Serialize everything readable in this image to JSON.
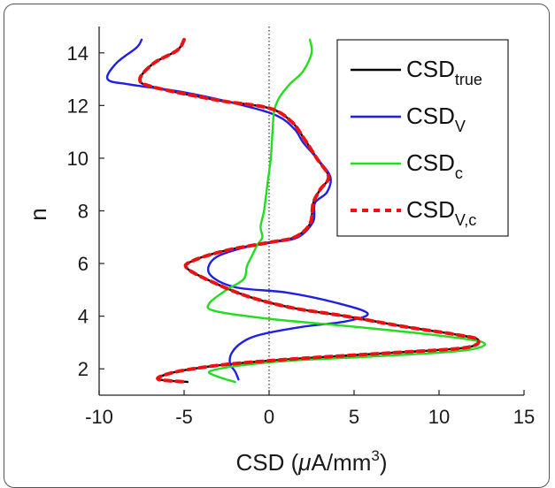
{
  "chart_data": {
    "type": "line",
    "xlabel_main": "CSD (",
    "xlabel_mu": "μ",
    "xlabel_unit": "A/mm",
    "xlabel_exp": "3",
    "xlabel_close": ")",
    "ylabel": "n",
    "xlim": [
      -10,
      15
    ],
    "ylim": [
      1,
      15
    ],
    "xticks": [
      -10,
      -5,
      0,
      5,
      10,
      15
    ],
    "yticks": [
      2,
      4,
      6,
      8,
      10,
      12,
      14
    ],
    "grid": false,
    "legend_position": "top-right",
    "zero_line": 0,
    "series": [
      {
        "name": "CSD",
        "sub": "true",
        "color": "#000000",
        "dash": "solid",
        "points": [
          [
            -5.0,
            14.5
          ],
          [
            -5.4,
            14.1
          ],
          [
            -6.8,
            13.6
          ],
          [
            -7.6,
            13.0
          ],
          [
            -6.8,
            12.7
          ],
          [
            -3.0,
            12.2
          ],
          [
            0.0,
            11.9
          ],
          [
            1.3,
            11.4
          ],
          [
            2.0,
            10.8
          ],
          [
            2.8,
            10.0
          ],
          [
            3.5,
            9.3
          ],
          [
            3.0,
            8.8
          ],
          [
            2.6,
            8.3
          ],
          [
            2.4,
            7.5
          ],
          [
            1.5,
            7.0
          ],
          [
            0.0,
            6.8
          ],
          [
            -2.5,
            6.5
          ],
          [
            -4.5,
            6.1
          ],
          [
            -4.8,
            5.8
          ],
          [
            -3.0,
            5.2
          ],
          [
            -1.0,
            4.7
          ],
          [
            1.5,
            4.3
          ],
          [
            4.5,
            4.0
          ],
          [
            8.0,
            3.6
          ],
          [
            11.0,
            3.3
          ],
          [
            12.3,
            3.1
          ],
          [
            11.5,
            2.8
          ],
          [
            7.0,
            2.6
          ],
          [
            2.0,
            2.4
          ],
          [
            -2.0,
            2.2
          ],
          [
            -4.5,
            2.0
          ],
          [
            -6.0,
            1.8
          ],
          [
            -6.5,
            1.6
          ],
          [
            -4.8,
            1.5
          ]
        ]
      },
      {
        "name": "CSD",
        "sub": "V",
        "color": "#1f1fe6",
        "dash": "solid",
        "points": [
          [
            -7.5,
            14.5
          ],
          [
            -7.8,
            14.2
          ],
          [
            -9.0,
            13.6
          ],
          [
            -9.5,
            13.0
          ],
          [
            -8.2,
            12.8
          ],
          [
            -5.0,
            12.5
          ],
          [
            -1.5,
            12.0
          ],
          [
            0.5,
            11.6
          ],
          [
            1.5,
            11.1
          ],
          [
            2.0,
            10.6
          ],
          [
            2.8,
            10.0
          ],
          [
            3.6,
            9.3
          ],
          [
            3.4,
            8.7
          ],
          [
            2.7,
            8.3
          ],
          [
            2.6,
            7.6
          ],
          [
            1.7,
            7.0
          ],
          [
            0.2,
            6.8
          ],
          [
            -1.5,
            6.6
          ],
          [
            -3.2,
            6.2
          ],
          [
            -3.5,
            5.6
          ],
          [
            -2.0,
            5.1
          ],
          [
            1.0,
            4.9
          ],
          [
            4.0,
            4.5
          ],
          [
            5.8,
            4.1
          ],
          [
            4.5,
            3.8
          ],
          [
            2.0,
            3.6
          ],
          [
            -0.5,
            3.3
          ],
          [
            -1.6,
            3.0
          ],
          [
            -2.2,
            2.6
          ],
          [
            -2.3,
            2.2
          ],
          [
            -2.0,
            1.9
          ],
          [
            -1.8,
            1.6
          ]
        ]
      },
      {
        "name": "CSD",
        "sub": "c",
        "color": "#22dd22",
        "dash": "solid",
        "points": [
          [
            2.4,
            14.5
          ],
          [
            2.5,
            14.0
          ],
          [
            2.0,
            13.3
          ],
          [
            1.2,
            12.8
          ],
          [
            0.6,
            12.3
          ],
          [
            0.3,
            11.8
          ],
          [
            0.2,
            11.0
          ],
          [
            0.1,
            10.0
          ],
          [
            -0.1,
            9.0
          ],
          [
            -0.3,
            8.0
          ],
          [
            -0.5,
            7.4
          ],
          [
            -0.4,
            7.0
          ],
          [
            -0.7,
            6.7
          ],
          [
            -1.0,
            6.3
          ],
          [
            -1.3,
            5.9
          ],
          [
            -1.5,
            5.4
          ],
          [
            -2.5,
            5.0
          ],
          [
            -3.5,
            4.5
          ],
          [
            -3.2,
            4.2
          ],
          [
            0.0,
            3.9
          ],
          [
            5.0,
            3.6
          ],
          [
            9.5,
            3.3
          ],
          [
            12.6,
            3.0
          ],
          [
            11.5,
            2.7
          ],
          [
            7.0,
            2.5
          ],
          [
            1.0,
            2.3
          ],
          [
            -2.0,
            2.1
          ],
          [
            -3.5,
            1.9
          ],
          [
            -3.0,
            1.7
          ],
          [
            -2.0,
            1.5
          ]
        ]
      },
      {
        "name": "CSD",
        "sub": "V,c",
        "color": "#ee1111",
        "dash": "dashed",
        "points": [
          [
            -5.0,
            14.5
          ],
          [
            -5.4,
            14.1
          ],
          [
            -6.8,
            13.6
          ],
          [
            -7.6,
            13.0
          ],
          [
            -6.8,
            12.7
          ],
          [
            -3.0,
            12.2
          ],
          [
            0.0,
            11.9
          ],
          [
            1.3,
            11.4
          ],
          [
            2.0,
            10.8
          ],
          [
            2.8,
            10.0
          ],
          [
            3.5,
            9.3
          ],
          [
            3.0,
            8.8
          ],
          [
            2.6,
            8.3
          ],
          [
            2.4,
            7.5
          ],
          [
            1.5,
            7.0
          ],
          [
            0.0,
            6.8
          ],
          [
            -2.5,
            6.5
          ],
          [
            -4.5,
            6.1
          ],
          [
            -4.8,
            5.8
          ],
          [
            -3.0,
            5.2
          ],
          [
            -1.0,
            4.7
          ],
          [
            1.5,
            4.3
          ],
          [
            4.5,
            4.0
          ],
          [
            8.0,
            3.6
          ],
          [
            11.0,
            3.3
          ],
          [
            12.3,
            3.1
          ],
          [
            11.5,
            2.8
          ],
          [
            7.0,
            2.6
          ],
          [
            2.0,
            2.4
          ],
          [
            -2.0,
            2.2
          ],
          [
            -4.5,
            2.0
          ],
          [
            -6.0,
            1.8
          ],
          [
            -6.5,
            1.6
          ],
          [
            -4.8,
            1.5
          ]
        ]
      }
    ]
  }
}
